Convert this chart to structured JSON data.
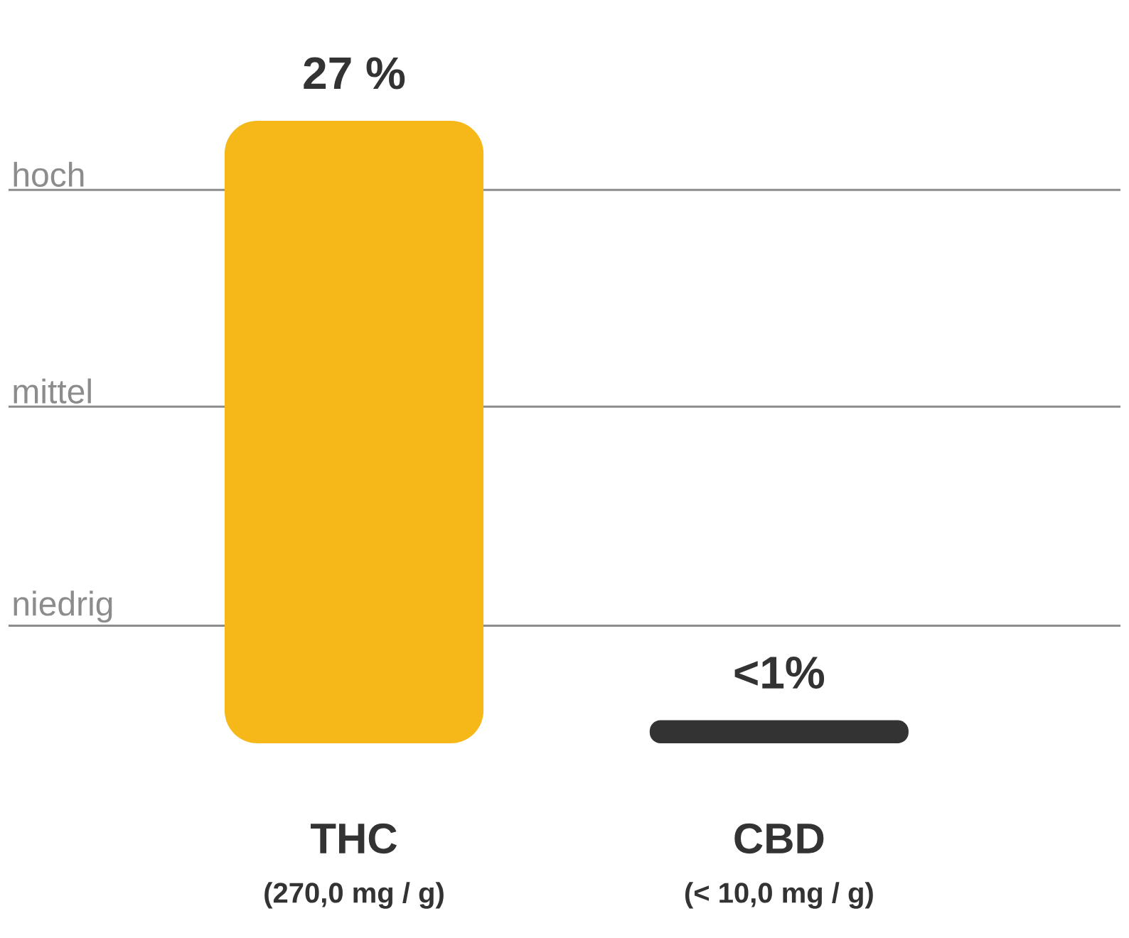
{
  "chart_data": {
    "type": "bar",
    "categories": [
      "THC",
      "CBD"
    ],
    "values": [
      27,
      1
    ],
    "colors": [
      "#f6b718",
      "#333333"
    ],
    "value_labels": [
      "27 %",
      "<1%"
    ],
    "ref_lines": [
      {
        "axis": "y",
        "value": 24,
        "label": "hoch",
        "color": "#8c8c8c"
      },
      {
        "axis": "y",
        "value": 14.6,
        "label": "mittel",
        "color": "#8c8c8c"
      },
      {
        "axis": "y",
        "value": 5.1,
        "label": "niedrig",
        "color": "#8c8c8c"
      }
    ],
    "annotations": [
      "(270,0 mg / g)",
      "(< 10,0 mg / g)"
    ]
  }
}
